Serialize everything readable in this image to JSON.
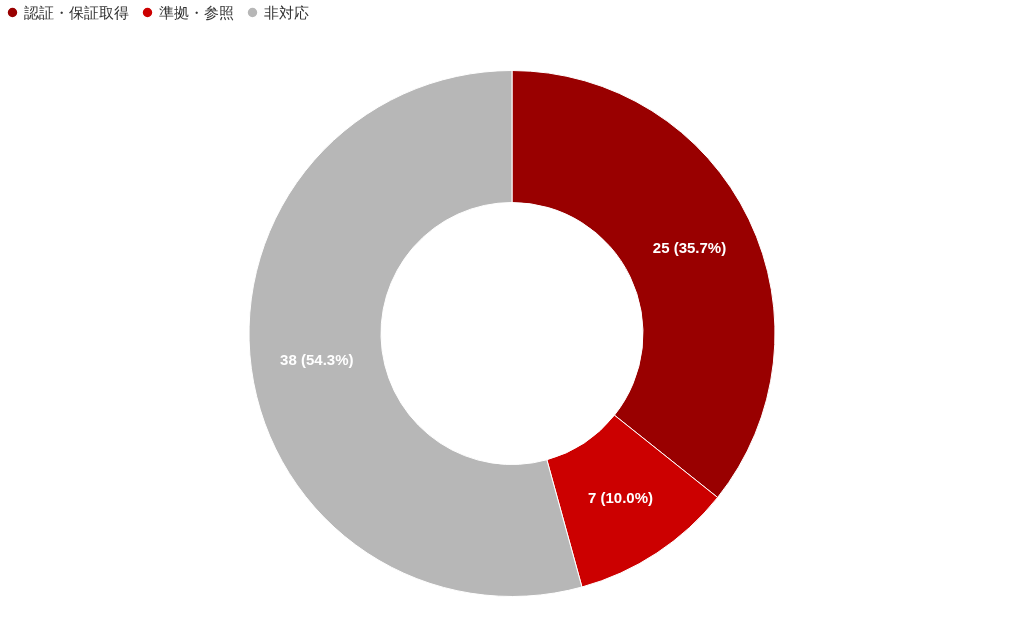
{
  "chart_data": {
    "type": "donut",
    "categories": [
      "認証・保証取得",
      "準拠・参照",
      "非対応"
    ],
    "values": [
      25,
      7,
      38
    ],
    "colors": [
      "#990000",
      "#cc0000",
      "#b7b7b7"
    ],
    "value_labels": [
      "25 (35.7%)",
      "7 (10.0%)",
      "38 (54.3%)"
    ],
    "legend": "top"
  }
}
